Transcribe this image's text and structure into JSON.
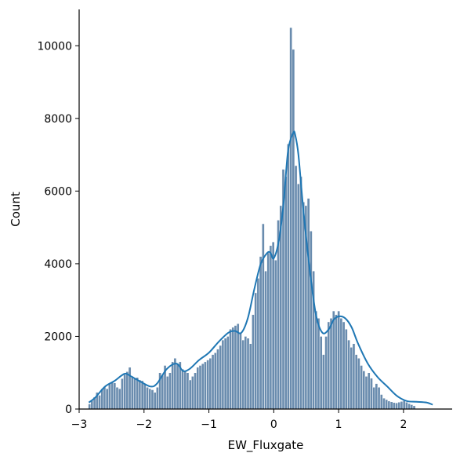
{
  "chart_data": {
    "type": "histogram",
    "xlabel": "EW_Fluxgate",
    "ylabel": "Count",
    "xlim": [
      -3.0,
      2.75
    ],
    "ylim": [
      0,
      11000
    ],
    "x_ticks": [
      -3,
      -2,
      -1,
      0,
      1,
      2
    ],
    "x_tick_labels": [
      "−3",
      "−2",
      "−1",
      "0",
      "1",
      "2"
    ],
    "y_ticks": [
      0,
      2000,
      4000,
      6000,
      8000,
      10000
    ],
    "y_tick_labels": [
      "0",
      "2000",
      "4000",
      "6000",
      "8000",
      "10000"
    ],
    "bin_start": -2.86,
    "bin_width": 0.0388,
    "counts": [
      140,
      230,
      330,
      460,
      380,
      560,
      600,
      560,
      710,
      740,
      720,
      600,
      560,
      840,
      950,
      1030,
      1150,
      900,
      850,
      870,
      800,
      780,
      700,
      600,
      560,
      530,
      460,
      600,
      1000,
      930,
      1200,
      900,
      1000,
      1300,
      1400,
      1250,
      1300,
      1100,
      1050,
      1000,
      800,
      900,
      1000,
      1150,
      1200,
      1250,
      1300,
      1350,
      1400,
      1500,
      1550,
      1650,
      1750,
      1900,
      1950,
      2000,
      2200,
      2250,
      2300,
      2350,
      2100,
      1900,
      2000,
      1950,
      1800,
      2600,
      3200,
      3600,
      4200,
      5100,
      3800,
      4300,
      4500,
      4600,
      4100,
      5200,
      5600,
      6600,
      6400,
      7300,
      10500,
      9900,
      6700,
      6200,
      6400,
      5700,
      5600,
      5800,
      4900,
      3800,
      2700,
      2500,
      2000,
      1500,
      2000,
      2400,
      2500,
      2700,
      2600,
      2700,
      2500,
      2400,
      2200,
      1900,
      1700,
      1800,
      1500,
      1400,
      1200,
      1050,
      900,
      1000,
      850,
      600,
      700,
      600,
      400,
      300,
      260,
      220,
      200,
      180,
      170,
      190,
      210,
      230,
      190,
      150,
      120,
      90
    ],
    "kde": {
      "x": [
        -2.85,
        -2.75,
        -2.6,
        -2.45,
        -2.3,
        -2.2,
        -2.05,
        -1.9,
        -1.8,
        -1.65,
        -1.5,
        -1.4,
        -1.3,
        -1.15,
        -1.0,
        -0.85,
        -0.7,
        -0.6,
        -0.5,
        -0.4,
        -0.3,
        -0.2,
        -0.1,
        -0.05,
        0.0,
        0.08,
        0.15,
        0.22,
        0.3,
        0.33,
        0.38,
        0.45,
        0.55,
        0.65,
        0.75,
        0.85,
        0.92,
        1.0,
        1.1,
        1.2,
        1.3,
        1.45,
        1.6,
        1.75,
        1.9,
        2.05,
        2.2,
        2.35,
        2.45
      ],
      "y": [
        180,
        320,
        620,
        780,
        970,
        900,
        750,
        620,
        700,
        1100,
        1250,
        1050,
        1100,
        1350,
        1550,
        1850,
        2100,
        2150,
        2100,
        2500,
        3300,
        4000,
        4300,
        4300,
        4150,
        4650,
        5650,
        7100,
        7600,
        7550,
        7000,
        5600,
        3900,
        2600,
        2100,
        2200,
        2450,
        2550,
        2500,
        2250,
        1800,
        1250,
        880,
        620,
        360,
        220,
        200,
        180,
        120
      ]
    },
    "colors": {
      "bar_fill": "#6a8cae",
      "bar_edge": "#ffffff",
      "kde_line": "#1f77b4",
      "axis": "#000000"
    },
    "grid": false,
    "legend": "none"
  }
}
